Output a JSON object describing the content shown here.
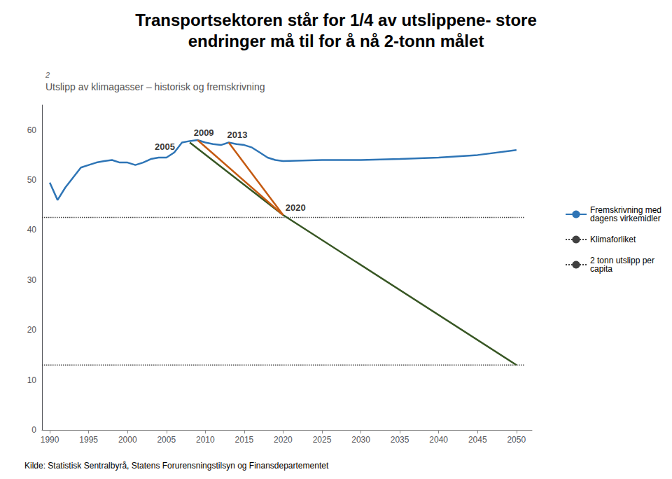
{
  "chart_data": {
    "type": "line",
    "title": "Transportsektoren står for 1/4 av utslippene- store\nendringer må til for å nå 2-tonn målet",
    "subtitle": "Utslipp av klimagasser – historisk og fremskrivning",
    "unit_label": "2",
    "source": "Kilde: Statistisk Sentralbyrå, Statens Forurensningstilsyn og Finansdepartementet",
    "series": [
      {
        "name": "Fremskrivning med\ndagens virkemidler",
        "color": "#2E75B6",
        "x": [
          1990,
          1991,
          1992,
          1993,
          1994,
          1995,
          1996,
          1997,
          1998,
          1999,
          2000,
          2001,
          2002,
          2003,
          2004,
          2005,
          2006,
          2007,
          2008,
          2009,
          2010,
          2011,
          2012,
          2013,
          2014,
          2015,
          2016,
          2017,
          2018,
          2019,
          2020,
          2025,
          2030,
          2035,
          2040,
          2045,
          2050
        ],
        "values": [
          49.5,
          46.0,
          48.5,
          50.5,
          52.5,
          53.0,
          53.5,
          53.8,
          54.0,
          53.5,
          53.5,
          53.0,
          53.5,
          54.2,
          54.5,
          54.5,
          55.5,
          57.5,
          57.8,
          58.0,
          57.5,
          57.2,
          57.0,
          57.5,
          57.2,
          57.0,
          56.5,
          55.5,
          54.5,
          54.0,
          53.8,
          54.0,
          54.0,
          54.2,
          54.5,
          55.0,
          56.0
        ]
      },
      {
        "color": "#375623",
        "x": [
          2008,
          2020,
          2050
        ],
        "values": [
          57.5,
          43.0,
          13.0
        ]
      },
      {
        "color": "#C55A11",
        "x": [
          2009,
          2020
        ],
        "values": [
          58.0,
          43.0
        ]
      },
      {
        "color": "#C55A11",
        "x": [
          2013,
          2020
        ],
        "values": [
          57.5,
          43.0
        ]
      },
      {
        "name": "Klimaforliket",
        "color": "#404040",
        "line_style": "dotted",
        "x": [
          1989,
          2051
        ],
        "values": [
          42.5,
          42.5
        ]
      },
      {
        "name": "2 tonn utslipp per\ncapita",
        "color": "#404040",
        "line_style": "dotted",
        "x": [
          1989,
          2051
        ],
        "values": [
          13.0,
          13.0
        ]
      }
    ],
    "annotations": [
      {
        "text": "2005",
        "x": 2003.5,
        "y": 55.7
      },
      {
        "text": "2009",
        "x": 2008.5,
        "y": 58.5
      },
      {
        "text": "2013",
        "x": 2012.8,
        "y": 58.2
      },
      {
        "text": "2020",
        "x": 2020.3,
        "y": 43.5
      }
    ],
    "xlim": [
      1989,
      2052
    ],
    "ylim": [
      0,
      65
    ],
    "xticks": [
      1990,
      1995,
      2000,
      2005,
      2010,
      2015,
      2020,
      2025,
      2030,
      2035,
      2040,
      2045,
      2050
    ],
    "yticks": [
      0,
      10,
      20,
      30,
      40,
      50,
      60
    ],
    "grid": false,
    "legend": "right"
  }
}
